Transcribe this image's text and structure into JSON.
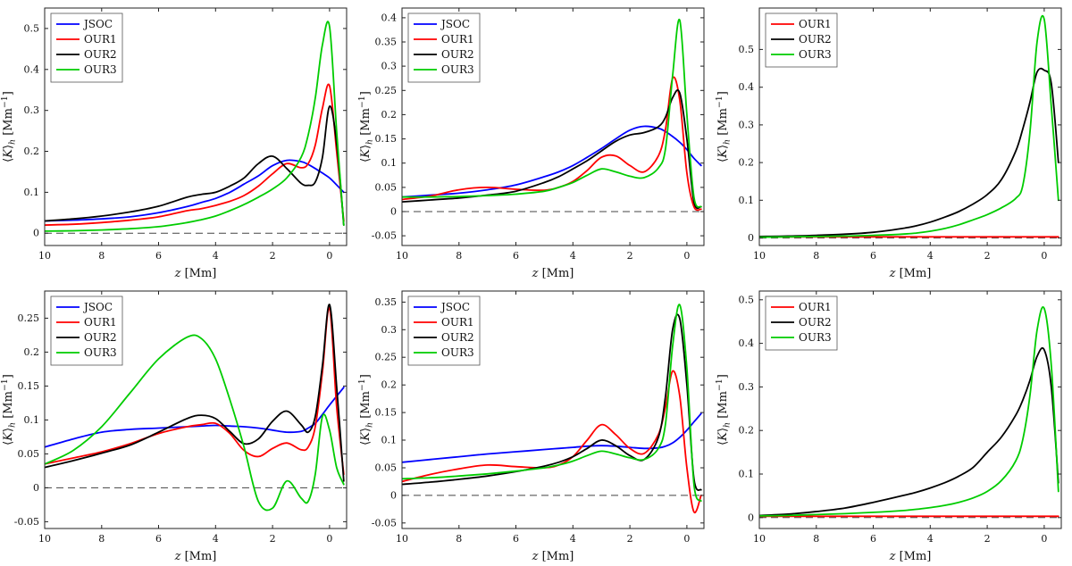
{
  "figure": {
    "background": "#ffffff"
  },
  "colors": {
    "JSOC": "#0000ff",
    "OUR1": "#ff0000",
    "OUR2": "#000000",
    "OUR3": "#00cc00"
  },
  "labels": {
    "xlabel": "z [Mm]",
    "ylabel": "<K>_h [Mm^-1]",
    "xlabel_parts": [
      {
        "t": "z",
        "i": 1
      },
      {
        "t": " [Mm]"
      }
    ],
    "ylabel_parts": [
      {
        "t": "⟨"
      },
      {
        "t": "K",
        "i": 1
      },
      {
        "t": "⟩"
      },
      {
        "t": "h",
        "sub": 1,
        "i": 1
      },
      {
        "t": " [Mm"
      },
      {
        "t": "−1",
        "sup": 1
      },
      {
        "t": "]"
      }
    ]
  },
  "chart_data": [
    {
      "type": "line",
      "position": "top-left",
      "xlim": [
        10,
        -0.6
      ],
      "xticks": [
        10,
        8,
        6,
        4,
        2,
        0
      ],
      "ylim": [
        -0.03,
        0.55
      ],
      "yticks": [
        0,
        0.1,
        0.2,
        0.3,
        0.4,
        0.5
      ],
      "zero_line": true,
      "legend": {
        "position": "top-left",
        "entries": [
          "JSOC",
          "OUR1",
          "OUR2",
          "OUR3"
        ]
      },
      "x": [
        10,
        9,
        8,
        7,
        6,
        5,
        4.5,
        4,
        3.5,
        3,
        2.5,
        2,
        1.5,
        1,
        0.75,
        0.5,
        0.25,
        0,
        -0.25,
        -0.5
      ],
      "series": [
        {
          "name": "JSOC",
          "values": [
            0.03,
            0.032,
            0.035,
            0.04,
            0.05,
            0.065,
            0.075,
            0.085,
            0.1,
            0.12,
            0.14,
            0.165,
            0.178,
            0.175,
            0.168,
            0.158,
            0.147,
            0.135,
            0.118,
            0.1
          ]
        },
        {
          "name": "OUR1",
          "values": [
            0.02,
            0.022,
            0.026,
            0.032,
            0.04,
            0.055,
            0.06,
            0.068,
            0.078,
            0.092,
            0.115,
            0.145,
            0.17,
            0.16,
            0.17,
            0.215,
            0.305,
            0.36,
            0.2,
            0.03
          ]
        },
        {
          "name": "OUR2",
          "values": [
            0.03,
            0.035,
            0.042,
            0.052,
            0.066,
            0.088,
            0.095,
            0.1,
            0.115,
            0.135,
            0.17,
            0.188,
            0.158,
            0.122,
            0.117,
            0.125,
            0.185,
            0.31,
            0.22,
            0.02
          ]
        },
        {
          "name": "OUR3",
          "values": [
            0.005,
            0.006,
            0.008,
            0.011,
            0.016,
            0.026,
            0.033,
            0.042,
            0.055,
            0.07,
            0.088,
            0.108,
            0.135,
            0.185,
            0.24,
            0.33,
            0.46,
            0.505,
            0.25,
            0.02
          ]
        }
      ]
    },
    {
      "type": "line",
      "position": "top-middle",
      "xlim": [
        10,
        -0.6
      ],
      "xticks": [
        10,
        8,
        6,
        4,
        2,
        0
      ],
      "ylim": [
        -0.07,
        0.42
      ],
      "yticks": [
        -0.05,
        0,
        0.05,
        0.1,
        0.15,
        0.2,
        0.25,
        0.3,
        0.35,
        0.4
      ],
      "zero_line": true,
      "legend": {
        "position": "top-left",
        "entries": [
          "JSOC",
          "OUR1",
          "OUR2",
          "OUR3"
        ]
      },
      "x": [
        10,
        9,
        8,
        7,
        6,
        5,
        4.5,
        4,
        3.5,
        3,
        2.5,
        2,
        1.5,
        1,
        0.75,
        0.5,
        0.25,
        0,
        -0.25,
        -0.5
      ],
      "series": [
        {
          "name": "JSOC",
          "values": [
            0.03,
            0.034,
            0.038,
            0.045,
            0.055,
            0.072,
            0.082,
            0.095,
            0.112,
            0.13,
            0.15,
            0.168,
            0.176,
            0.172,
            0.165,
            0.155,
            0.143,
            0.128,
            0.11,
            0.095
          ]
        },
        {
          "name": "OUR1",
          "values": [
            0.025,
            0.032,
            0.045,
            0.05,
            0.046,
            0.044,
            0.05,
            0.062,
            0.085,
            0.112,
            0.115,
            0.095,
            0.082,
            0.115,
            0.17,
            0.275,
            0.23,
            0.08,
            0.01,
            0.005
          ]
        },
        {
          "name": "OUR2",
          "values": [
            0.02,
            0.024,
            0.028,
            0.034,
            0.042,
            0.06,
            0.072,
            0.088,
            0.105,
            0.125,
            0.145,
            0.158,
            0.163,
            0.175,
            0.195,
            0.235,
            0.245,
            0.15,
            0.02,
            0.01
          ]
        },
        {
          "name": "OUR3",
          "values": [
            0.03,
            0.03,
            0.031,
            0.033,
            0.036,
            0.042,
            0.05,
            0.06,
            0.075,
            0.088,
            0.082,
            0.073,
            0.07,
            0.09,
            0.13,
            0.28,
            0.395,
            0.2,
            0.03,
            0.01
          ]
        }
      ]
    },
    {
      "type": "line",
      "position": "top-right",
      "xlim": [
        10,
        -0.6
      ],
      "xticks": [
        10,
        8,
        6,
        4,
        2,
        0
      ],
      "ylim": [
        -0.02,
        0.61
      ],
      "yticks": [
        0,
        0.1,
        0.2,
        0.3,
        0.4,
        0.5
      ],
      "zero_line": true,
      "legend": {
        "position": "top-left",
        "entries": [
          "OUR1",
          "OUR2",
          "OUR3"
        ]
      },
      "x": [
        10,
        9,
        8,
        7,
        6,
        5,
        4.5,
        4,
        3.5,
        3,
        2.5,
        2,
        1.5,
        1,
        0.75,
        0.5,
        0.25,
        0,
        -0.25,
        -0.5
      ],
      "series": [
        {
          "name": "OUR1",
          "values": [
            0.003,
            0.003,
            0.003,
            0.003,
            0.003,
            0.003,
            0.003,
            0.003,
            0.003,
            0.003,
            0.003,
            0.003,
            0.003,
            0.003,
            0.003,
            0.003,
            0.003,
            0.003,
            0.003,
            0.003
          ]
        },
        {
          "name": "OUR2",
          "values": [
            0.004,
            0.005,
            0.007,
            0.01,
            0.015,
            0.025,
            0.032,
            0.042,
            0.055,
            0.07,
            0.09,
            0.115,
            0.155,
            0.23,
            0.29,
            0.36,
            0.44,
            0.445,
            0.41,
            0.2
          ]
        },
        {
          "name": "OUR3",
          "values": [
            0.002,
            0.003,
            0.004,
            0.005,
            0.007,
            0.01,
            0.013,
            0.018,
            0.025,
            0.035,
            0.048,
            0.062,
            0.08,
            0.105,
            0.14,
            0.28,
            0.52,
            0.58,
            0.35,
            0.1
          ]
        }
      ]
    },
    {
      "type": "line",
      "position": "bottom-left",
      "xlim": [
        10,
        -0.6
      ],
      "xticks": [
        10,
        8,
        6,
        4,
        2,
        0
      ],
      "ylim": [
        -0.06,
        0.29
      ],
      "yticks": [
        -0.05,
        0,
        0.05,
        0.1,
        0.15,
        0.2,
        0.25
      ],
      "zero_line": true,
      "legend": {
        "position": "top-left",
        "entries": [
          "JSOC",
          "OUR1",
          "OUR2",
          "OUR3"
        ]
      },
      "x": [
        10,
        9,
        8,
        7,
        6,
        5,
        4.5,
        4,
        3.5,
        3,
        2.5,
        2,
        1.5,
        1,
        0.75,
        0.5,
        0.25,
        0,
        -0.25,
        -0.5
      ],
      "series": [
        {
          "name": "JSOC",
          "values": [
            0.06,
            0.072,
            0.082,
            0.086,
            0.088,
            0.09,
            0.091,
            0.092,
            0.091,
            0.09,
            0.088,
            0.085,
            0.082,
            0.083,
            0.088,
            0.095,
            0.108,
            0.122,
            0.135,
            0.148
          ]
        },
        {
          "name": "OUR1",
          "values": [
            0.035,
            0.044,
            0.053,
            0.065,
            0.08,
            0.09,
            0.093,
            0.095,
            0.08,
            0.055,
            0.046,
            0.058,
            0.066,
            0.056,
            0.06,
            0.09,
            0.17,
            0.265,
            0.12,
            0.02
          ]
        },
        {
          "name": "OUR2",
          "values": [
            0.03,
            0.04,
            0.051,
            0.063,
            0.082,
            0.102,
            0.107,
            0.102,
            0.083,
            0.065,
            0.072,
            0.098,
            0.113,
            0.093,
            0.082,
            0.105,
            0.18,
            0.27,
            0.15,
            0.01
          ]
        },
        {
          "name": "OUR3",
          "values": [
            0.035,
            0.055,
            0.09,
            0.14,
            0.19,
            0.222,
            0.22,
            0.19,
            0.13,
            0.06,
            -0.02,
            -0.03,
            0.01,
            -0.015,
            -0.02,
            0.02,
            0.105,
            0.085,
            0.03,
            0.005
          ]
        }
      ]
    },
    {
      "type": "line",
      "position": "bottom-middle",
      "xlim": [
        10,
        -0.6
      ],
      "xticks": [
        10,
        8,
        6,
        4,
        2,
        0
      ],
      "ylim": [
        -0.06,
        0.37
      ],
      "yticks": [
        -0.05,
        0,
        0.05,
        0.1,
        0.15,
        0.2,
        0.25,
        0.3,
        0.35
      ],
      "zero_line": true,
      "legend": {
        "position": "top-left",
        "entries": [
          "JSOC",
          "OUR1",
          "OUR2",
          "OUR3"
        ]
      },
      "x": [
        10,
        9,
        8,
        7,
        6,
        5,
        4.5,
        4,
        3.5,
        3,
        2.5,
        2,
        1.5,
        1,
        0.75,
        0.5,
        0.25,
        0,
        -0.25,
        -0.5
      ],
      "series": [
        {
          "name": "JSOC",
          "values": [
            0.06,
            0.065,
            0.07,
            0.075,
            0.079,
            0.083,
            0.085,
            0.087,
            0.089,
            0.09,
            0.089,
            0.087,
            0.085,
            0.086,
            0.089,
            0.095,
            0.105,
            0.118,
            0.133,
            0.148
          ]
        },
        {
          "name": "OUR1",
          "values": [
            0.025,
            0.038,
            0.048,
            0.055,
            0.052,
            0.05,
            0.055,
            0.07,
            0.1,
            0.128,
            0.11,
            0.085,
            0.076,
            0.11,
            0.16,
            0.225,
            0.18,
            0.05,
            -0.03,
            0.0
          ]
        },
        {
          "name": "OUR2",
          "values": [
            0.02,
            0.024,
            0.029,
            0.035,
            0.043,
            0.053,
            0.06,
            0.07,
            0.085,
            0.1,
            0.09,
            0.072,
            0.065,
            0.105,
            0.18,
            0.3,
            0.32,
            0.2,
            0.03,
            0.01
          ]
        },
        {
          "name": "OUR3",
          "values": [
            0.03,
            0.032,
            0.035,
            0.039,
            0.044,
            0.05,
            0.055,
            0.062,
            0.072,
            0.08,
            0.075,
            0.068,
            0.065,
            0.085,
            0.13,
            0.27,
            0.345,
            0.23,
            0.02,
            -0.01
          ]
        }
      ]
    },
    {
      "type": "line",
      "position": "bottom-right",
      "xlim": [
        10,
        -0.6
      ],
      "xticks": [
        10,
        8,
        6,
        4,
        2,
        0
      ],
      "ylim": [
        -0.025,
        0.52
      ],
      "yticks": [
        0,
        0.1,
        0.2,
        0.3,
        0.4,
        0.5
      ],
      "zero_line": true,
      "legend": {
        "position": "top-left",
        "entries": [
          "OUR1",
          "OUR2",
          "OUR3"
        ]
      },
      "x": [
        10,
        9,
        8,
        7,
        6,
        5,
        4.5,
        4,
        3.5,
        3,
        2.5,
        2,
        1.5,
        1,
        0.75,
        0.5,
        0.25,
        0,
        -0.25,
        -0.5
      ],
      "series": [
        {
          "name": "OUR1",
          "values": [
            0.003,
            0.003,
            0.003,
            0.003,
            0.003,
            0.003,
            0.003,
            0.003,
            0.003,
            0.003,
            0.003,
            0.003,
            0.003,
            0.003,
            0.003,
            0.003,
            0.003,
            0.003,
            0.003,
            0.003
          ]
        },
        {
          "name": "OUR2",
          "values": [
            0.005,
            0.008,
            0.014,
            0.022,
            0.035,
            0.05,
            0.058,
            0.068,
            0.08,
            0.095,
            0.115,
            0.15,
            0.185,
            0.235,
            0.27,
            0.315,
            0.37,
            0.385,
            0.3,
            0.08
          ]
        },
        {
          "name": "OUR3",
          "values": [
            0.004,
            0.005,
            0.007,
            0.009,
            0.012,
            0.016,
            0.019,
            0.023,
            0.028,
            0.035,
            0.045,
            0.06,
            0.085,
            0.13,
            0.18,
            0.28,
            0.43,
            0.48,
            0.35,
            0.06
          ]
        }
      ]
    }
  ]
}
